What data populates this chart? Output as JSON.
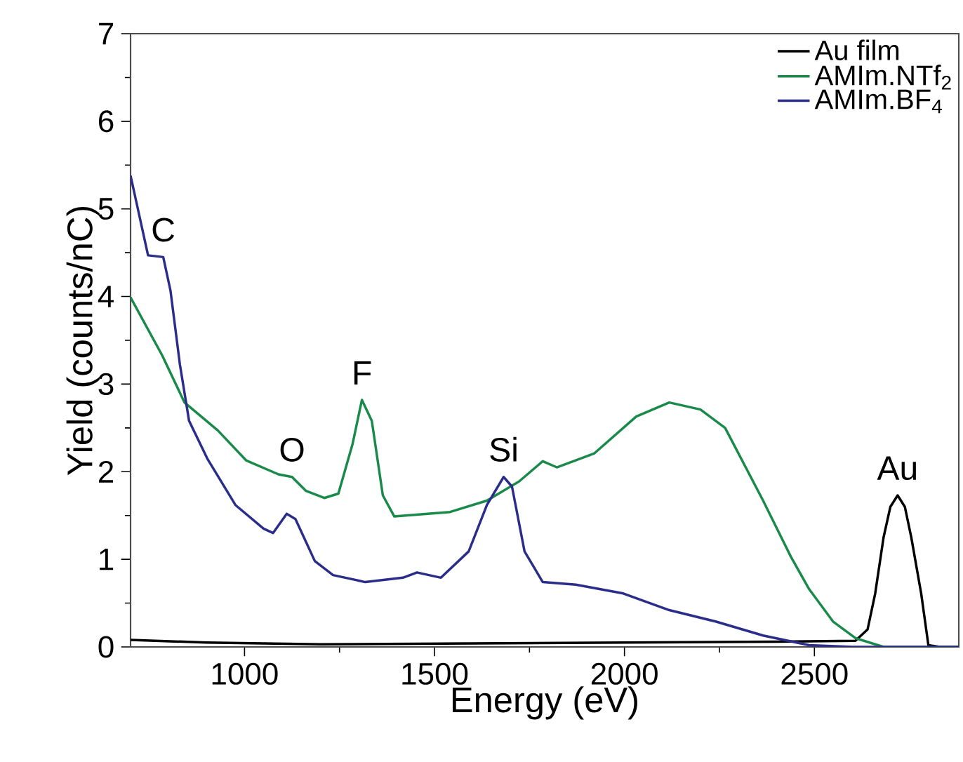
{
  "chart_data": {
    "type": "line",
    "xlabel": "Energy (eV)",
    "ylabel": "Yield (counts/nC)",
    "xlim": [
      700,
      2880
    ],
    "xticks": [
      1000,
      1500,
      2000,
      2500
    ],
    "ylim": [
      0,
      7
    ],
    "yticks": [
      0,
      1,
      2,
      3,
      4,
      5,
      6,
      7
    ],
    "legend": "top right",
    "marker": "none",
    "line_style": "solid",
    "series": [
      {
        "name": "Au film",
        "color": "#000000",
        "x": [
          700,
          900,
          1200,
          1600,
          2000,
          2400,
          2608,
          2640,
          2660,
          2682,
          2700,
          2719,
          2738,
          2755,
          2781,
          2800,
          2830,
          2880
        ],
        "values": [
          0.08,
          0.05,
          0.03,
          0.04,
          0.05,
          0.06,
          0.07,
          0.2,
          0.61,
          1.25,
          1.6,
          1.73,
          1.6,
          1.25,
          0.61,
          0.02,
          0,
          0
        ]
      },
      {
        "name": "AMIm.NTf$_{2}$",
        "color": "#1a8a4a",
        "x": [
          700,
          783,
          842,
          930,
          1004,
          1089,
          1125,
          1162,
          1210,
          1247,
          1284,
          1309,
          1335,
          1364,
          1394,
          1541,
          1638,
          1723,
          1785,
          1822,
          1921,
          2031,
          2118,
          2200,
          2265,
          2365,
          2438,
          2486,
          2549,
          2608,
          2682,
          2880
        ],
        "values": [
          3.99,
          3.33,
          2.79,
          2.47,
          2.13,
          1.97,
          1.94,
          1.78,
          1.7,
          1.75,
          2.31,
          2.82,
          2.58,
          1.73,
          1.49,
          1.54,
          1.67,
          1.89,
          2.12,
          2.05,
          2.21,
          2.63,
          2.79,
          2.71,
          2.5,
          1.67,
          1.03,
          0.66,
          0.29,
          0.1,
          0,
          0
        ]
      },
      {
        "name": "AMIm.BF$_{4}$",
        "color": "#2b2d8a",
        "x": [
          700,
          746,
          786,
          805,
          830,
          854,
          902,
          976,
          1050,
          1075,
          1111,
          1134,
          1185,
          1233,
          1318,
          1417,
          1454,
          1517,
          1590,
          1638,
          1682,
          1704,
          1737,
          1785,
          1872,
          1997,
          2118,
          2240,
          2365,
          2486,
          2600,
          2880
        ],
        "values": [
          5.38,
          4.47,
          4.45,
          4.07,
          3.22,
          2.58,
          2.15,
          1.62,
          1.35,
          1.3,
          1.52,
          1.46,
          0.98,
          0.82,
          0.74,
          0.79,
          0.85,
          0.79,
          1.09,
          1.62,
          1.94,
          1.83,
          1.09,
          0.74,
          0.71,
          0.61,
          0.42,
          0.29,
          0.13,
          0.02,
          0,
          0
        ]
      }
    ],
    "annotations": [
      {
        "text": "C",
        "x": 786,
        "y": 4.45
      },
      {
        "text": "O",
        "x": 1125,
        "y": 1.94
      },
      {
        "text": "F",
        "x": 1309,
        "y": 2.82
      },
      {
        "text": "Si",
        "x": 1682,
        "y": 1.94
      },
      {
        "text": "Au",
        "x": 2719,
        "y": 1.73
      }
    ]
  }
}
